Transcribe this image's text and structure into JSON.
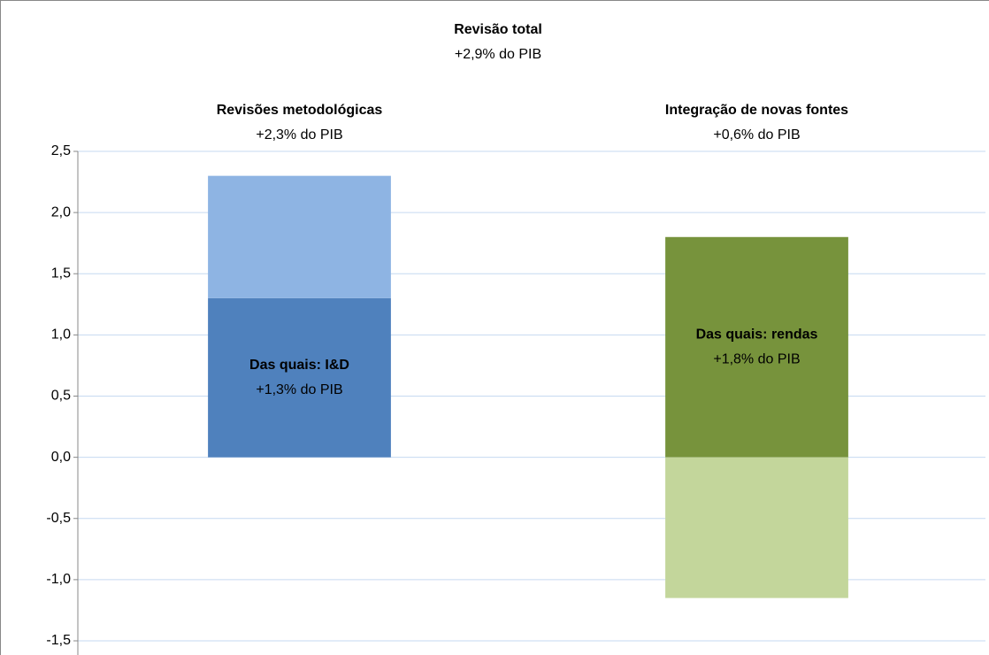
{
  "chart_data": {
    "type": "stacked_bar",
    "title": "Revisão total",
    "subtitle": "+2,9% do PIB",
    "categories": [
      "Revisões metodológicas",
      "Integração de novas fontes"
    ],
    "category_subtitles": [
      "+2,3% do PIB",
      "+0,6% do PIB"
    ],
    "series": [
      {
        "colors": [
          "#4f81bd",
          "#77933c"
        ],
        "values": [
          1.3,
          1.8
        ]
      },
      {
        "colors": [
          "#8eb4e3",
          "#c3d69b"
        ],
        "values": [
          1.0,
          -1.15
        ]
      }
    ],
    "segment_labels": [
      {
        "title": "Das quais: I&D",
        "text": "+1,3% do PIB"
      },
      {
        "title": "Das quais: rendas",
        "text": "+1,8% do PIB"
      }
    ],
    "ylim": [
      -1.5,
      2.5
    ],
    "yticks": [
      {
        "value": -1.5,
        "label": "-1,5"
      },
      {
        "value": -1.0,
        "label": "-1,0"
      },
      {
        "value": -0.5,
        "label": "-0,5"
      },
      {
        "value": 0,
        "label": "0,0"
      },
      {
        "value": 0.5,
        "label": "0,5"
      },
      {
        "value": 1.0,
        "label": "1,0"
      },
      {
        "value": 1.5,
        "label": "1,5"
      },
      {
        "value": 2.0,
        "label": "2,0"
      },
      {
        "value": 2.5,
        "label": "2,5"
      }
    ],
    "grid": true
  }
}
